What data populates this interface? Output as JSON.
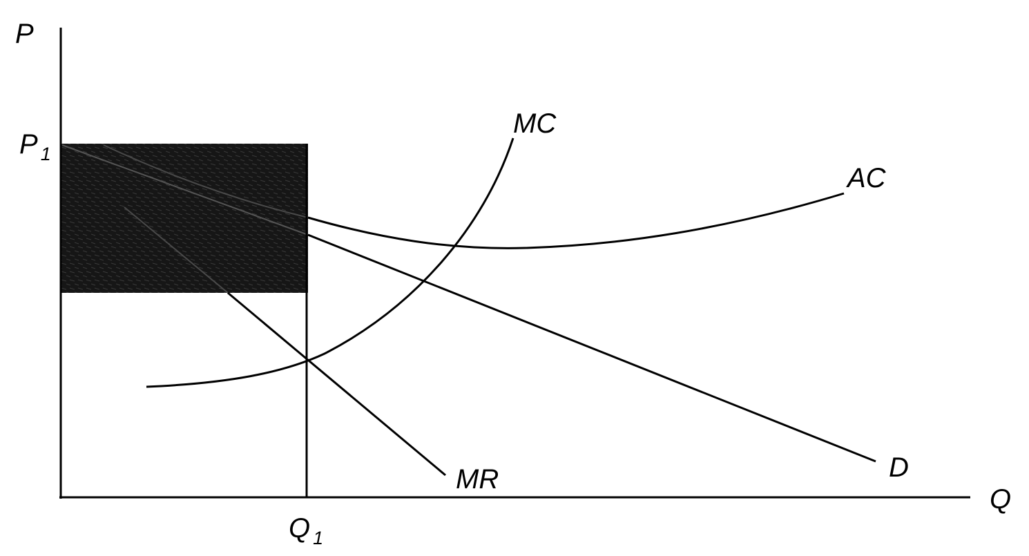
{
  "axes": {
    "y_label": "P",
    "x_label": "Q"
  },
  "price_level": {
    "label": "P",
    "subscript": "1"
  },
  "quantity_level": {
    "label": "Q",
    "subscript": "1"
  },
  "curves": [
    {
      "label": "MC"
    },
    {
      "label": "AC"
    },
    {
      "label": "D"
    },
    {
      "label": "MR"
    }
  ]
}
